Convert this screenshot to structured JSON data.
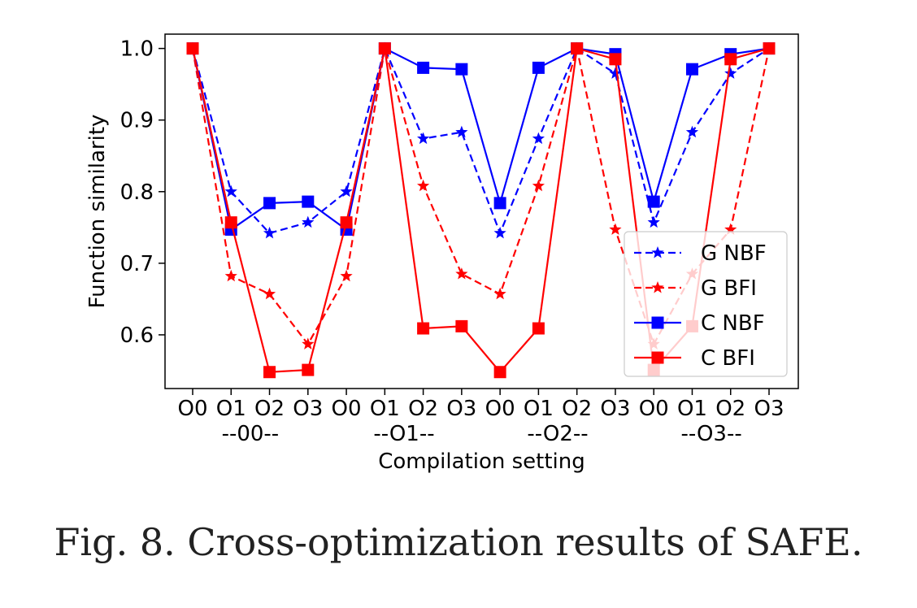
{
  "caption": "Fig. 8.  Cross-optimization results of SAFE.",
  "chart_data": {
    "type": "line",
    "xlabel": "Compilation setting",
    "ylabel": "Function similarity",
    "ylim": [
      0.525,
      1.02
    ],
    "yticks": [
      0.6,
      0.7,
      0.8,
      0.9,
      1.0
    ],
    "categories": [
      "O0",
      "O1",
      "O2",
      "O3",
      "O0",
      "O1",
      "O2",
      "O3",
      "O0",
      "O1",
      "O2",
      "O3",
      "O0",
      "O1",
      "O2",
      "O3"
    ],
    "groups": [
      "--00--",
      "--O1--",
      "--O2--",
      "--O3--"
    ],
    "grid": false,
    "legend_position": "bottom-right",
    "series": [
      {
        "name": "G NBF",
        "color": "#0000ff",
        "dash": true,
        "marker": "star",
        "values": [
          1.0,
          0.8,
          0.742,
          0.757,
          0.8,
          1.0,
          0.874,
          0.883,
          0.742,
          0.874,
          1.0,
          0.965,
          0.757,
          0.883,
          0.965,
          1.0
        ]
      },
      {
        "name": "G BFI",
        "color": "#ff0000",
        "dash": true,
        "marker": "star",
        "values": [
          1.0,
          0.682,
          0.657,
          0.587,
          0.682,
          1.0,
          0.808,
          0.685,
          0.657,
          0.808,
          1.0,
          0.747,
          0.587,
          0.685,
          0.747,
          1.0
        ]
      },
      {
        "name": "C NBF",
        "color": "#0000ff",
        "dash": false,
        "marker": "square",
        "values": [
          1.0,
          0.747,
          0.784,
          0.786,
          0.747,
          1.0,
          0.973,
          0.971,
          0.784,
          0.973,
          1.0,
          0.992,
          0.786,
          0.971,
          0.992,
          1.0
        ]
      },
      {
        "name": "C BFI",
        "color": "#ff0000",
        "dash": false,
        "marker": "square",
        "values": [
          1.0,
          0.757,
          0.548,
          0.551,
          0.757,
          1.0,
          0.609,
          0.612,
          0.548,
          0.609,
          1.0,
          0.985,
          0.551,
          0.612,
          0.985,
          1.0
        ]
      }
    ]
  }
}
